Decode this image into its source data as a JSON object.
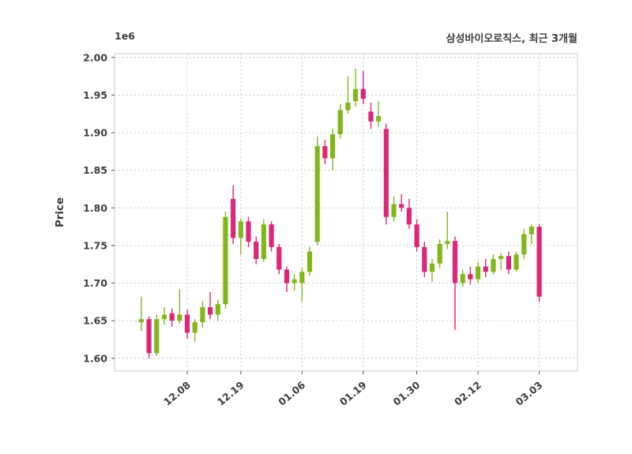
{
  "chart_data": {
    "type": "candlestick",
    "title": "삼성바이오로직스, 최근 3개월",
    "ylabel": "Price",
    "y_offset_label": "1e6",
    "y_unit": 1000000,
    "ylim": [
      1.583,
      2.005
    ],
    "xlim": [
      -3.5,
      57
    ],
    "grid": {
      "show": true,
      "style": "dashed",
      "color": "#cccccc"
    },
    "legend": null,
    "colors": {
      "up": "#82b71c",
      "down": "#dd2579",
      "spine": "#cccccc",
      "tick_label": "#3d3d3d",
      "background": "#ffffff"
    },
    "yticks": {
      "values": [
        1.6,
        1.65,
        1.7,
        1.75,
        1.8,
        1.85,
        1.9,
        1.95,
        2.0
      ],
      "labels": [
        "1.60",
        "1.65",
        "1.70",
        "1.75",
        "1.80",
        "1.85",
        "1.90",
        "1.95",
        "2.00"
      ]
    },
    "xticks": [
      {
        "pos": 6,
        "label": "12.08"
      },
      {
        "pos": 13,
        "label": "12.19"
      },
      {
        "pos": 21,
        "label": "01.06"
      },
      {
        "pos": 29,
        "label": "01.19"
      },
      {
        "pos": 36,
        "label": "01.30"
      },
      {
        "pos": 44,
        "label": "02.12"
      },
      {
        "pos": 52,
        "label": "03.03"
      }
    ],
    "candles": [
      [
        1.648,
        1.682,
        1.636,
        1.652
      ],
      [
        1.652,
        1.656,
        1.6,
        1.607
      ],
      [
        1.607,
        1.658,
        1.603,
        1.652
      ],
      [
        1.652,
        1.668,
        1.645,
        1.658
      ],
      [
        1.66,
        1.666,
        1.642,
        1.65
      ],
      [
        1.65,
        1.692,
        1.646,
        1.658
      ],
      [
        1.658,
        1.665,
        1.626,
        1.634
      ],
      [
        1.634,
        1.652,
        1.622,
        1.648
      ],
      [
        1.648,
        1.676,
        1.64,
        1.668
      ],
      [
        1.668,
        1.688,
        1.652,
        1.658
      ],
      [
        1.658,
        1.678,
        1.65,
        1.672
      ],
      [
        1.672,
        1.795,
        1.666,
        1.788
      ],
      [
        1.812,
        1.83,
        1.752,
        1.76
      ],
      [
        1.76,
        1.786,
        1.738,
        1.782
      ],
      [
        1.782,
        1.788,
        1.748,
        1.755
      ],
      [
        1.755,
        1.762,
        1.725,
        1.732
      ],
      [
        1.732,
        1.785,
        1.728,
        1.778
      ],
      [
        1.778,
        1.782,
        1.742,
        1.748
      ],
      [
        1.748,
        1.752,
        1.712,
        1.718
      ],
      [
        1.718,
        1.722,
        1.688,
        1.7
      ],
      [
        1.7,
        1.712,
        1.69,
        1.705
      ],
      [
        1.7,
        1.72,
        1.675,
        1.715
      ],
      [
        1.715,
        1.748,
        1.71,
        1.742
      ],
      [
        1.755,
        1.895,
        1.75,
        1.882
      ],
      [
        1.882,
        1.89,
        1.858,
        1.866
      ],
      [
        1.866,
        1.905,
        1.85,
        1.898
      ],
      [
        1.898,
        1.938,
        1.892,
        1.93
      ],
      [
        1.93,
        1.975,
        1.925,
        1.94
      ],
      [
        1.942,
        1.985,
        1.935,
        1.958
      ],
      [
        1.958,
        1.982,
        1.938,
        1.945
      ],
      [
        1.928,
        1.94,
        1.905,
        1.915
      ],
      [
        1.915,
        1.942,
        1.908,
        1.922
      ],
      [
        1.905,
        1.912,
        1.778,
        1.788
      ],
      [
        1.788,
        1.815,
        1.782,
        1.805
      ],
      [
        1.805,
        1.818,
        1.795,
        1.8
      ],
      [
        1.8,
        1.812,
        1.772,
        1.778
      ],
      [
        1.778,
        1.785,
        1.742,
        1.748
      ],
      [
        1.748,
        1.755,
        1.708,
        1.715
      ],
      [
        1.715,
        1.732,
        1.702,
        1.726
      ],
      [
        1.726,
        1.758,
        1.72,
        1.752
      ],
      [
        1.752,
        1.795,
        1.745,
        1.756
      ],
      [
        1.756,
        1.762,
        1.638,
        1.7
      ],
      [
        1.7,
        1.718,
        1.695,
        1.712
      ],
      [
        1.712,
        1.722,
        1.698,
        1.705
      ],
      [
        1.705,
        1.728,
        1.7,
        1.722
      ],
      [
        1.722,
        1.732,
        1.708,
        1.715
      ],
      [
        1.715,
        1.738,
        1.712,
        1.732
      ],
      [
        1.732,
        1.74,
        1.718,
        1.736
      ],
      [
        1.736,
        1.742,
        1.712,
        1.718
      ],
      [
        1.718,
        1.742,
        1.715,
        1.738
      ],
      [
        1.738,
        1.772,
        1.732,
        1.765
      ],
      [
        1.765,
        1.778,
        1.752,
        1.775
      ],
      [
        1.775,
        1.778,
        1.675,
        1.682
      ]
    ]
  }
}
